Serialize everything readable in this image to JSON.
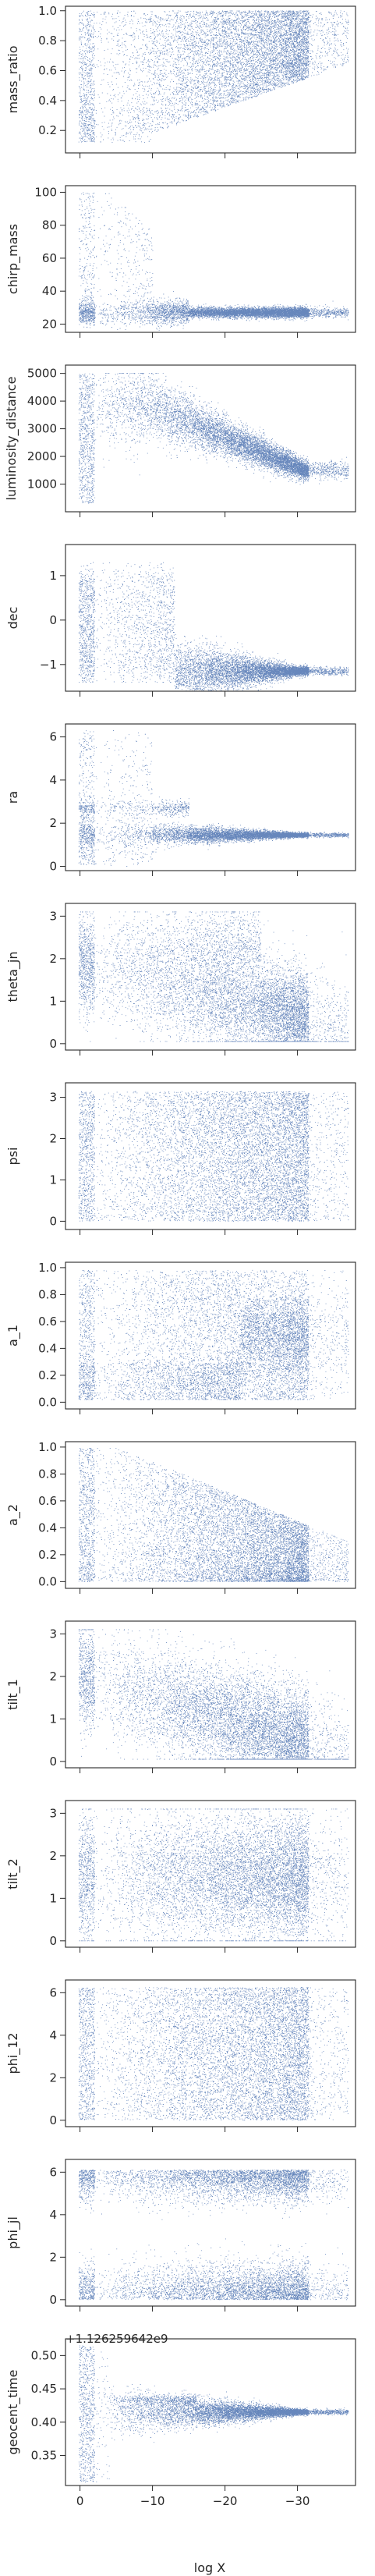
{
  "figure": {
    "offset_text": "+1.126259642e9",
    "xlabel": "log X",
    "x_ticks": [
      0,
      -10,
      -20,
      -30
    ],
    "x_range": [
      2,
      -38
    ],
    "point_color": "#4c72b0"
  },
  "chart_data": [
    {
      "type": "scatter",
      "ylabel": "mass_ratio",
      "ylim": [
        0.05,
        1.03
      ],
      "yticks": [
        0.2,
        0.4,
        0.6,
        0.8,
        1.0
      ],
      "ytick_labels": [
        "0.2",
        "0.4",
        "0.6",
        "0.8",
        "1.0"
      ],
      "shape": "mass_ratio",
      "grid": false
    },
    {
      "type": "scatter",
      "ylabel": "chirp_mass",
      "ylim": [
        15,
        104
      ],
      "yticks": [
        20,
        40,
        60,
        80,
        100
      ],
      "ytick_labels": [
        "20",
        "40",
        "60",
        "80",
        "100"
      ],
      "shape": "chirp_mass",
      "grid": false
    },
    {
      "type": "scatter",
      "ylabel": "luminosity_distance",
      "ylim": [
        0,
        5300
      ],
      "yticks": [
        1000,
        2000,
        3000,
        4000,
        5000
      ],
      "ytick_labels": [
        "1000",
        "2000",
        "3000",
        "4000",
        "5000"
      ],
      "shape": "luminosity_distance",
      "grid": false
    },
    {
      "type": "scatter",
      "ylabel": "dec",
      "ylim": [
        -1.6,
        1.7
      ],
      "yticks": [
        -1,
        0,
        1
      ],
      "ytick_labels": [
        "−1",
        "0",
        "1"
      ],
      "shape": "dec",
      "grid": false
    },
    {
      "type": "scatter",
      "ylabel": "ra",
      "ylim": [
        -0.2,
        6.6
      ],
      "yticks": [
        0,
        2,
        4,
        6
      ],
      "ytick_labels": [
        "0",
        "2",
        "4",
        "6"
      ],
      "shape": "ra",
      "grid": false
    },
    {
      "type": "scatter",
      "ylabel": "theta_jn",
      "ylim": [
        -0.15,
        3.3
      ],
      "yticks": [
        0,
        1,
        2,
        3
      ],
      "ytick_labels": [
        "0",
        "1",
        "2",
        "3"
      ],
      "shape": "theta_jn",
      "grid": false
    },
    {
      "type": "scatter",
      "ylabel": "psi",
      "ylim": [
        -0.2,
        3.35
      ],
      "yticks": [
        0,
        1,
        2,
        3
      ],
      "ytick_labels": [
        "0",
        "1",
        "2",
        "3"
      ],
      "shape": "psi",
      "grid": false
    },
    {
      "type": "scatter",
      "ylabel": "a_1",
      "ylim": [
        -0.05,
        1.04
      ],
      "yticks": [
        0.0,
        0.2,
        0.4,
        0.6,
        0.8,
        1.0
      ],
      "ytick_labels": [
        "0.0",
        "0.2",
        "0.4",
        "0.6",
        "0.8",
        "1.0"
      ],
      "shape": "a_1",
      "grid": false
    },
    {
      "type": "scatter",
      "ylabel": "a_2",
      "ylim": [
        -0.05,
        1.04
      ],
      "yticks": [
        0.0,
        0.2,
        0.4,
        0.6,
        0.8,
        1.0
      ],
      "ytick_labels": [
        "0.0",
        "0.2",
        "0.4",
        "0.6",
        "0.8",
        "1.0"
      ],
      "shape": "a_2",
      "grid": false
    },
    {
      "type": "scatter",
      "ylabel": "tilt_1",
      "ylim": [
        -0.15,
        3.3
      ],
      "yticks": [
        0,
        1,
        2,
        3
      ],
      "ytick_labels": [
        "0",
        "1",
        "2",
        "3"
      ],
      "shape": "tilt_1",
      "grid": false
    },
    {
      "type": "scatter",
      "ylabel": "tilt_2",
      "ylim": [
        -0.15,
        3.3
      ],
      "yticks": [
        0,
        1,
        2,
        3
      ],
      "ytick_labels": [
        "0",
        "1",
        "2",
        "3"
      ],
      "shape": "tilt_2",
      "grid": false
    },
    {
      "type": "scatter",
      "ylabel": "phi_12",
      "ylim": [
        -0.3,
        6.6
      ],
      "yticks": [
        0,
        2,
        4,
        6
      ],
      "ytick_labels": [
        "0",
        "2",
        "4",
        "6"
      ],
      "shape": "phi_12",
      "grid": false
    },
    {
      "type": "scatter",
      "ylabel": "phi_jl",
      "ylim": [
        -0.3,
        6.6
      ],
      "yticks": [
        0,
        2,
        4,
        6
      ],
      "ytick_labels": [
        "0",
        "2",
        "4",
        "6"
      ],
      "shape": "phi_jl",
      "grid": false
    },
    {
      "type": "scatter",
      "ylabel": "geocent_time",
      "ylim": [
        0.305,
        0.525
      ],
      "yticks": [
        0.35,
        0.4,
        0.45,
        0.5
      ],
      "ytick_labels": [
        "0.35",
        "0.40",
        "0.45",
        "0.50"
      ],
      "shape": "geocent_time",
      "grid": false
    }
  ]
}
